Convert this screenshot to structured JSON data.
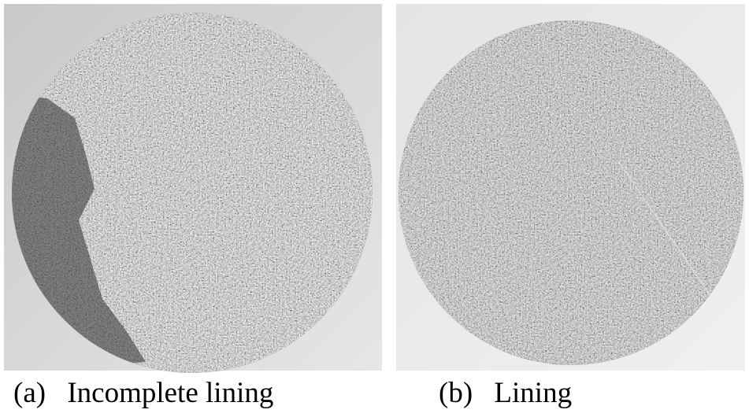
{
  "panels": [
    {
      "label": "(a)",
      "caption": "Incomplete lining"
    },
    {
      "label": "(b)",
      "caption": "Lining"
    }
  ]
}
